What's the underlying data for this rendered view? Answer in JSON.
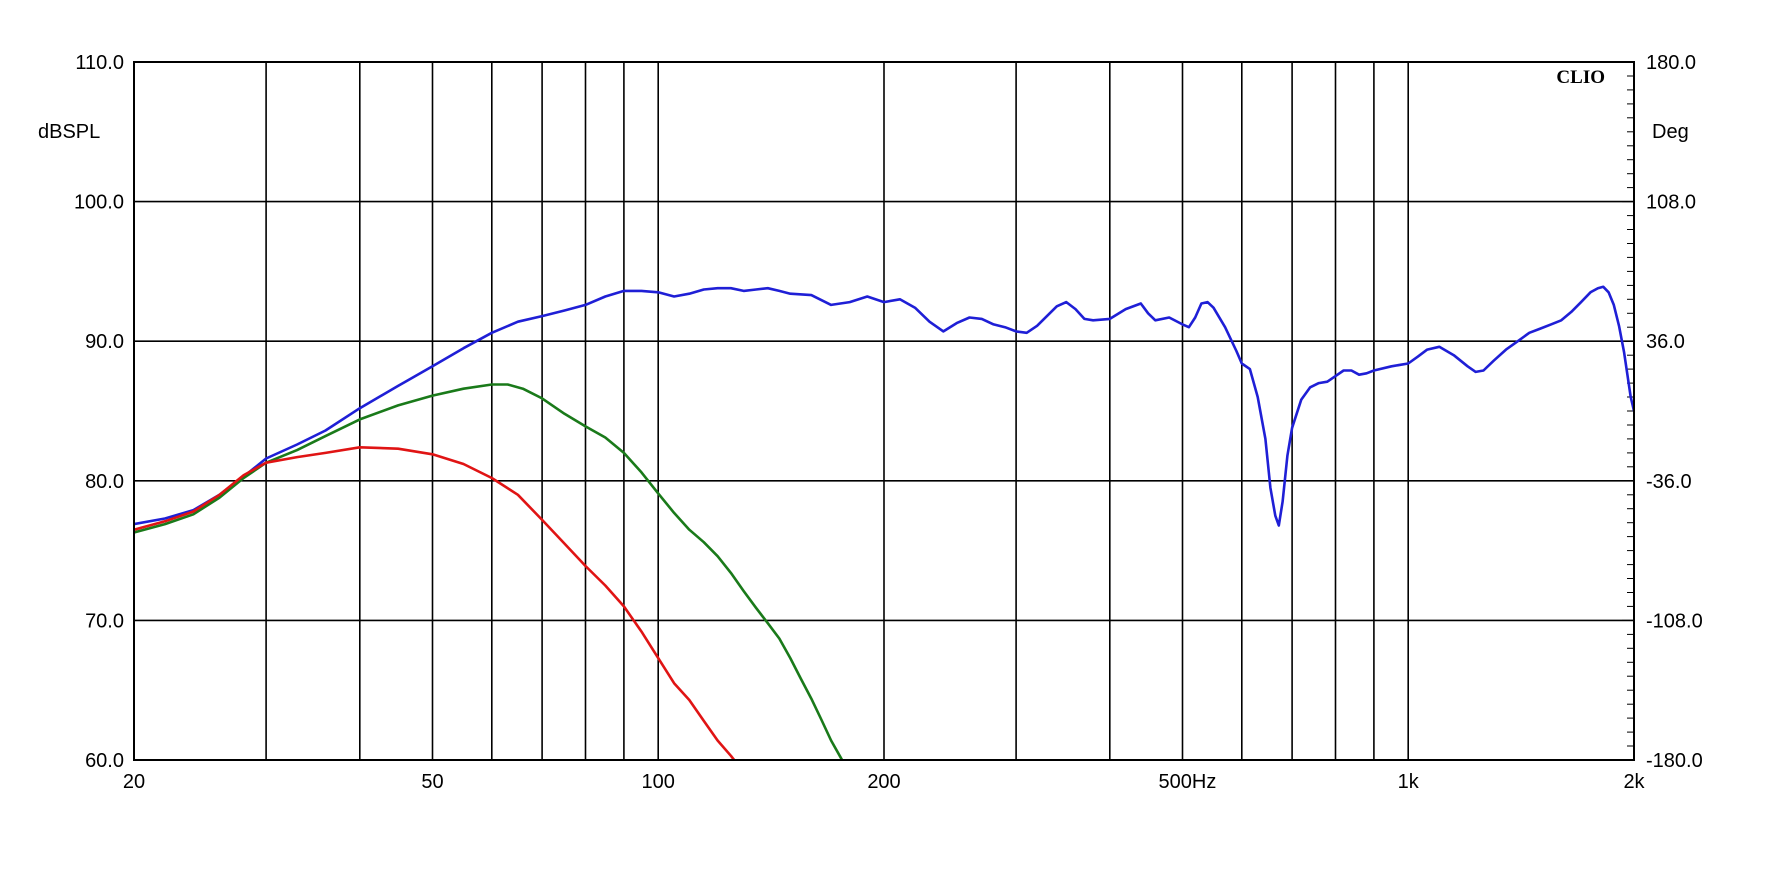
{
  "brand": "CLIO",
  "colors": {
    "background": "#ffffff",
    "grid": "#000000"
  },
  "chart_data": {
    "type": "line",
    "xscale": "log",
    "xlim": [
      20,
      2000
    ],
    "ylim": [
      60,
      110
    ],
    "y2lim": [
      -180,
      180
    ],
    "grid": true,
    "ylabel": "dBSPL",
    "y2label": "Deg",
    "x_gridlines": [
      30,
      40,
      50,
      60,
      70,
      80,
      90,
      100,
      200,
      300,
      400,
      500,
      600,
      700,
      800,
      900,
      1000
    ],
    "x_ticks": [
      {
        "value": 20,
        "label": "20"
      },
      {
        "value": 50,
        "label": "50"
      },
      {
        "value": 100,
        "label": "100"
      },
      {
        "value": 200,
        "label": "200"
      },
      {
        "value": 500,
        "label": "500Hz"
      },
      {
        "value": 1000,
        "label": "1k"
      },
      {
        "value": 2000,
        "label": "2k"
      }
    ],
    "y_ticks": [
      {
        "value": 110,
        "label": "110.0"
      },
      {
        "value": 100,
        "label": "100.0"
      },
      {
        "value": 90,
        "label": "90.0"
      },
      {
        "value": 80,
        "label": "80.0"
      },
      {
        "value": 70,
        "label": "70.0"
      },
      {
        "value": 60,
        "label": "60.0"
      }
    ],
    "y2_ticks": [
      {
        "value": 180,
        "label": "180.0"
      },
      {
        "value": 108,
        "label": "108.0"
      },
      {
        "value": 36,
        "label": "36.0"
      },
      {
        "value": -36,
        "label": "-36.0"
      },
      {
        "value": -108,
        "label": "-108.0"
      },
      {
        "value": -180,
        "label": "-180.0"
      }
    ],
    "series": [
      {
        "color": "#1f1fd6",
        "points": [
          [
            20,
            76.9
          ],
          [
            22,
            77.3
          ],
          [
            24,
            77.9
          ],
          [
            26,
            79.0
          ],
          [
            28,
            80.3
          ],
          [
            30,
            81.6
          ],
          [
            33,
            82.6
          ],
          [
            36,
            83.6
          ],
          [
            40,
            85.2
          ],
          [
            45,
            86.8
          ],
          [
            50,
            88.2
          ],
          [
            55,
            89.5
          ],
          [
            60,
            90.6
          ],
          [
            65,
            91.4
          ],
          [
            70,
            91.8
          ],
          [
            75,
            92.2
          ],
          [
            80,
            92.6
          ],
          [
            85,
            93.2
          ],
          [
            90,
            93.6
          ],
          [
            95,
            93.6
          ],
          [
            100,
            93.5
          ],
          [
            105,
            93.2
          ],
          [
            110,
            93.4
          ],
          [
            115,
            93.7
          ],
          [
            120,
            93.8
          ],
          [
            125,
            93.8
          ],
          [
            130,
            93.6
          ],
          [
            135,
            93.7
          ],
          [
            140,
            93.8
          ],
          [
            145,
            93.6
          ],
          [
            150,
            93.4
          ],
          [
            160,
            93.3
          ],
          [
            170,
            92.6
          ],
          [
            180,
            92.8
          ],
          [
            190,
            93.2
          ],
          [
            200,
            92.8
          ],
          [
            210,
            93.0
          ],
          [
            220,
            92.4
          ],
          [
            230,
            91.4
          ],
          [
            240,
            90.7
          ],
          [
            250,
            91.3
          ],
          [
            260,
            91.7
          ],
          [
            270,
            91.6
          ],
          [
            280,
            91.2
          ],
          [
            290,
            91.0
          ],
          [
            300,
            90.7
          ],
          [
            310,
            90.6
          ],
          [
            320,
            91.1
          ],
          [
            340,
            92.5
          ],
          [
            350,
            92.8
          ],
          [
            360,
            92.3
          ],
          [
            370,
            91.6
          ],
          [
            380,
            91.5
          ],
          [
            400,
            91.6
          ],
          [
            420,
            92.3
          ],
          [
            440,
            92.7
          ],
          [
            450,
            92.0
          ],
          [
            460,
            91.5
          ],
          [
            480,
            91.7
          ],
          [
            500,
            91.2
          ],
          [
            510,
            91.0
          ],
          [
            520,
            91.7
          ],
          [
            530,
            92.7
          ],
          [
            540,
            92.8
          ],
          [
            550,
            92.4
          ],
          [
            570,
            91.0
          ],
          [
            590,
            89.3
          ],
          [
            600,
            88.4
          ],
          [
            615,
            88.0
          ],
          [
            630,
            86.0
          ],
          [
            645,
            83.0
          ],
          [
            655,
            79.5
          ],
          [
            665,
            77.5
          ],
          [
            672,
            76.8
          ],
          [
            680,
            78.5
          ],
          [
            690,
            81.8
          ],
          [
            700,
            83.8
          ],
          [
            720,
            85.8
          ],
          [
            740,
            86.7
          ],
          [
            760,
            87.0
          ],
          [
            780,
            87.1
          ],
          [
            800,
            87.5
          ],
          [
            820,
            87.9
          ],
          [
            840,
            87.9
          ],
          [
            860,
            87.6
          ],
          [
            880,
            87.7
          ],
          [
            900,
            87.9
          ],
          [
            950,
            88.2
          ],
          [
            1000,
            88.4
          ],
          [
            1030,
            88.9
          ],
          [
            1060,
            89.4
          ],
          [
            1100,
            89.6
          ],
          [
            1150,
            89.0
          ],
          [
            1200,
            88.2
          ],
          [
            1230,
            87.8
          ],
          [
            1260,
            87.9
          ],
          [
            1300,
            88.6
          ],
          [
            1350,
            89.4
          ],
          [
            1400,
            90.0
          ],
          [
            1450,
            90.6
          ],
          [
            1500,
            90.9
          ],
          [
            1550,
            91.2
          ],
          [
            1600,
            91.5
          ],
          [
            1650,
            92.1
          ],
          [
            1700,
            92.8
          ],
          [
            1750,
            93.5
          ],
          [
            1790,
            93.8
          ],
          [
            1820,
            93.9
          ],
          [
            1850,
            93.5
          ],
          [
            1880,
            92.6
          ],
          [
            1910,
            91.1
          ],
          [
            1940,
            89.2
          ],
          [
            1960,
            87.6
          ],
          [
            1980,
            86.0
          ],
          [
            2000,
            85.0
          ]
        ]
      },
      {
        "color": "#1a7a1a",
        "points": [
          [
            20,
            76.3
          ],
          [
            22,
            76.9
          ],
          [
            24,
            77.6
          ],
          [
            26,
            78.8
          ],
          [
            28,
            80.2
          ],
          [
            30,
            81.3
          ],
          [
            33,
            82.2
          ],
          [
            36,
            83.2
          ],
          [
            40,
            84.4
          ],
          [
            45,
            85.4
          ],
          [
            50,
            86.1
          ],
          [
            55,
            86.6
          ],
          [
            60,
            86.9
          ],
          [
            63,
            86.9
          ],
          [
            66,
            86.6
          ],
          [
            70,
            85.9
          ],
          [
            75,
            84.8
          ],
          [
            80,
            83.9
          ],
          [
            85,
            83.1
          ],
          [
            90,
            82.0
          ],
          [
            95,
            80.6
          ],
          [
            100,
            79.1
          ],
          [
            105,
            77.7
          ],
          [
            110,
            76.5
          ],
          [
            115,
            75.6
          ],
          [
            120,
            74.6
          ],
          [
            125,
            73.4
          ],
          [
            130,
            72.1
          ],
          [
            135,
            70.9
          ],
          [
            140,
            69.8
          ],
          [
            145,
            68.7
          ],
          [
            150,
            67.3
          ],
          [
            155,
            65.8
          ],
          [
            160,
            64.4
          ],
          [
            165,
            62.9
          ],
          [
            170,
            61.4
          ],
          [
            175,
            60.2
          ],
          [
            178,
            59.5
          ]
        ]
      },
      {
        "color": "#e01414",
        "points": [
          [
            20,
            76.5
          ],
          [
            22,
            77.1
          ],
          [
            24,
            77.8
          ],
          [
            26,
            79.0
          ],
          [
            28,
            80.4
          ],
          [
            30,
            81.3
          ],
          [
            33,
            81.7
          ],
          [
            36,
            82.0
          ],
          [
            40,
            82.4
          ],
          [
            45,
            82.3
          ],
          [
            50,
            81.9
          ],
          [
            55,
            81.2
          ],
          [
            60,
            80.2
          ],
          [
            65,
            79.0
          ],
          [
            70,
            77.2
          ],
          [
            75,
            75.5
          ],
          [
            80,
            73.9
          ],
          [
            85,
            72.5
          ],
          [
            90,
            71.0
          ],
          [
            95,
            69.2
          ],
          [
            100,
            67.3
          ],
          [
            105,
            65.5
          ],
          [
            110,
            64.3
          ],
          [
            115,
            62.8
          ],
          [
            120,
            61.4
          ],
          [
            125,
            60.3
          ],
          [
            128,
            59.6
          ]
        ]
      }
    ]
  }
}
